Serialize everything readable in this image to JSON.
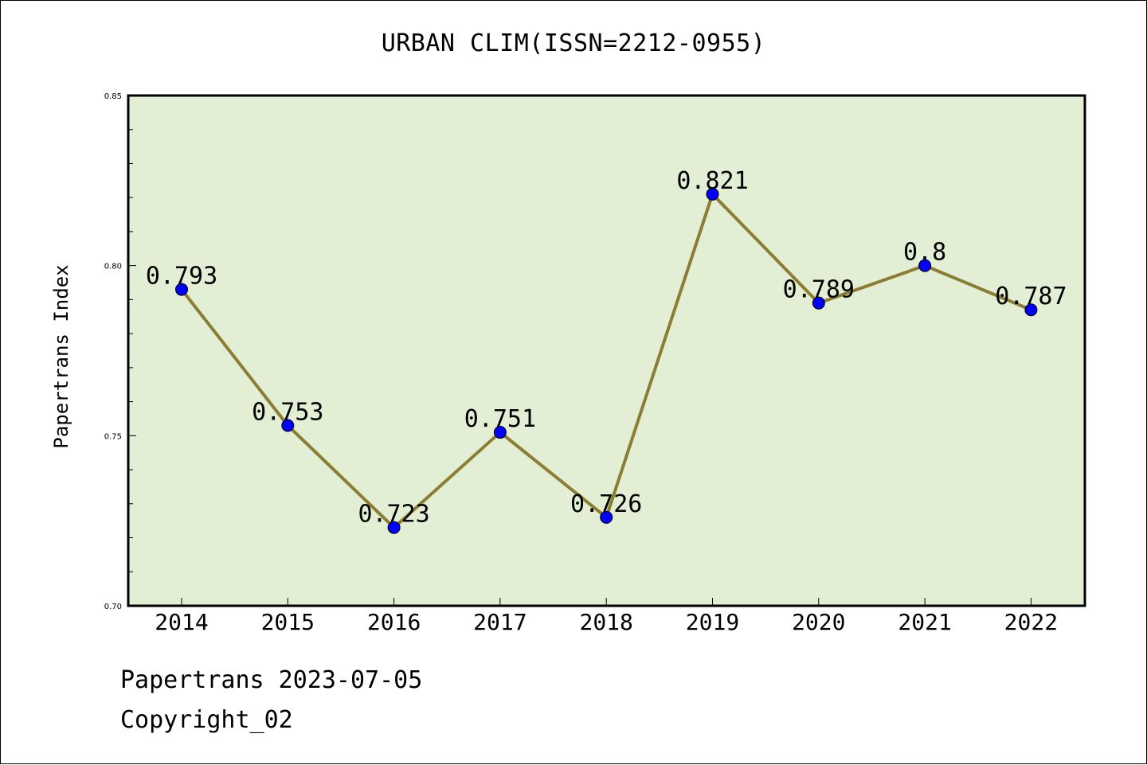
{
  "chart_data": {
    "type": "line",
    "title": "URBAN CLIM(ISSN=2212-0955)",
    "ylabel": "Papertrans Index",
    "xlabel": "",
    "categories": [
      "2014",
      "2015",
      "2016",
      "2017",
      "2018",
      "2019",
      "2020",
      "2021",
      "2022"
    ],
    "values": [
      0.793,
      0.753,
      0.723,
      0.751,
      0.726,
      0.821,
      0.789,
      0.8,
      0.787
    ],
    "data_labels": [
      "0.793",
      "0.753",
      "0.723",
      "0.751",
      "0.726",
      "0.821",
      "0.789",
      "0.8",
      "0.787"
    ],
    "ylim": [
      0.7,
      0.85
    ],
    "yticks": [
      "0.70",
      "0.75",
      "0.80",
      "0.85"
    ],
    "grid": false,
    "colors": {
      "plot_background": "#e2efd4",
      "line": "#8b7d33",
      "marker": "#0000ff"
    }
  },
  "footer": {
    "line1": "Papertrans 2023-07-05",
    "line2": "Copyright_02"
  }
}
